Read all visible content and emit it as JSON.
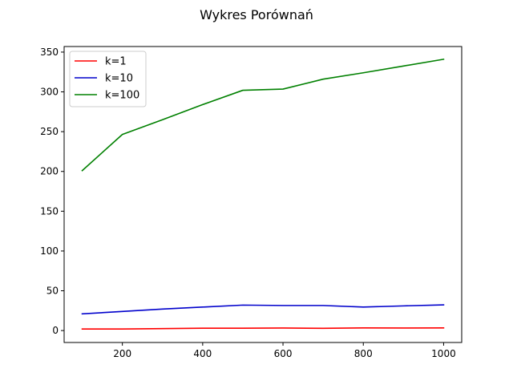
{
  "chart_data": {
    "type": "line",
    "title": "Wykres Porównań",
    "xlabel": "",
    "ylabel": "",
    "xlim": [
      55,
      1045
    ],
    "ylim": [
      -15,
      357
    ],
    "x_ticks": [
      200,
      400,
      600,
      800,
      1000
    ],
    "y_ticks": [
      0,
      50,
      100,
      150,
      200,
      250,
      300,
      350
    ],
    "grid": false,
    "legend_position": "upper left",
    "series": [
      {
        "name": "k=1",
        "color": "#ff0000",
        "x": [
          100,
          200,
          300,
          400,
          500,
          600,
          700,
          800,
          900,
          1000
        ],
        "y": [
          2,
          2,
          2.5,
          3,
          3,
          3.2,
          2.8,
          3.3,
          3.2,
          3.3
        ]
      },
      {
        "name": "k=10",
        "color": "#0000cc",
        "x": [
          100,
          200,
          300,
          400,
          500,
          600,
          700,
          800,
          900,
          1000
        ],
        "y": [
          21,
          24,
          27,
          29.5,
          32,
          31.5,
          31.5,
          29.5,
          31,
          32.3
        ]
      },
      {
        "name": "k=100",
        "color": "#008000",
        "x": [
          100,
          200,
          300,
          400,
          500,
          600,
          700,
          800,
          900,
          1000
        ],
        "y": [
          201,
          246.5,
          265,
          284,
          302,
          303.5,
          316,
          324,
          332.5,
          341
        ]
      }
    ]
  }
}
